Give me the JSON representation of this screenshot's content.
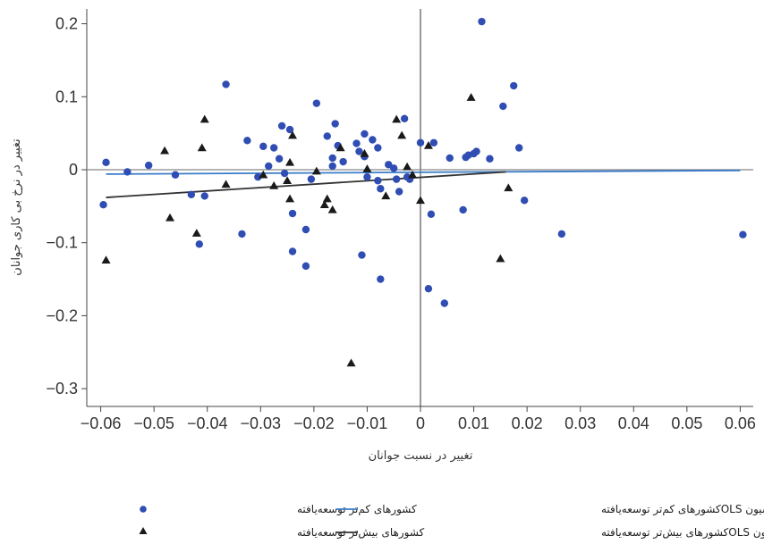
{
  "chart_data": {
    "type": "scatter",
    "xlabel": "تغییر در نسبت جوانان",
    "ylabel": "تغییر در نرخ بی کاری جوانان",
    "xlim": [
      -0.063,
      0.063
    ],
    "ylim": [
      -0.32,
      0.215
    ],
    "xticks": [
      -0.06,
      -0.05,
      -0.04,
      -0.03,
      -0.02,
      -0.01,
      0,
      0.01,
      0.02,
      0.03,
      0.04,
      0.05,
      0.06
    ],
    "xtick_labels": [
      "−0.06",
      "−0.05",
      "−0.04",
      "−0.03",
      "−0.02",
      "−0.01",
      "0",
      "0.01",
      "0.02",
      "0.03",
      "0.04",
      "0.05",
      "0.06"
    ],
    "yticks": [
      0.2,
      0.1,
      0,
      -0.1,
      -0.2,
      -0.3
    ],
    "ytick_labels": [
      "0.2",
      "0.1",
      "0",
      "−0.1",
      "−0.2",
      "−0.3"
    ],
    "grid": false,
    "legend_position": "bottom",
    "colors": {
      "less_developed": "#2f4db3",
      "more_developed": "#1a1a1a",
      "ols_less": "#3a7bc8",
      "ols_more": "#333333"
    },
    "series": [
      {
        "name": "کشورهای کم‌تر توسعه‌یافته",
        "marker": "circle",
        "points": [
          [
            -0.0595,
            -0.048
          ],
          [
            -0.059,
            0.01
          ],
          [
            -0.055,
            -0.003
          ],
          [
            -0.051,
            0.006
          ],
          [
            -0.046,
            -0.007
          ],
          [
            -0.043,
            -0.034
          ],
          [
            -0.0415,
            -0.102
          ],
          [
            -0.0405,
            -0.036
          ],
          [
            -0.0365,
            0.117
          ],
          [
            -0.0335,
            -0.088
          ],
          [
            -0.0325,
            0.04
          ],
          [
            -0.0305,
            -0.01
          ],
          [
            -0.0295,
            0.032
          ],
          [
            -0.0285,
            0.005
          ],
          [
            -0.0275,
            0.03
          ],
          [
            -0.0265,
            0.015
          ],
          [
            -0.026,
            0.06
          ],
          [
            -0.0255,
            -0.005
          ],
          [
            -0.0245,
            0.055
          ],
          [
            -0.024,
            -0.06
          ],
          [
            -0.024,
            -0.112
          ],
          [
            -0.0215,
            -0.082
          ],
          [
            -0.0215,
            -0.132
          ],
          [
            -0.0205,
            -0.013
          ],
          [
            -0.0195,
            0.091
          ],
          [
            -0.0175,
            0.046
          ],
          [
            -0.0165,
            0.016
          ],
          [
            -0.0165,
            0.005
          ],
          [
            -0.016,
            0.063
          ],
          [
            -0.0155,
            0.033
          ],
          [
            -0.0145,
            0.011
          ],
          [
            -0.012,
            0.036
          ],
          [
            -0.0115,
            0.025
          ],
          [
            -0.0105,
            0.018
          ],
          [
            -0.011,
            -0.117
          ],
          [
            -0.0105,
            0.049
          ],
          [
            -0.01,
            -0.01
          ],
          [
            -0.009,
            0.041
          ],
          [
            -0.008,
            0.03
          ],
          [
            -0.008,
            -0.015
          ],
          [
            -0.0075,
            -0.026
          ],
          [
            -0.0075,
            -0.15
          ],
          [
            -0.006,
            0.007
          ],
          [
            -0.005,
            0.002
          ],
          [
            -0.0045,
            -0.013
          ],
          [
            -0.004,
            -0.03
          ],
          [
            -0.003,
            0.07
          ],
          [
            -0.0025,
            -0.01
          ],
          [
            -0.002,
            -0.013
          ],
          [
            0,
            0.037
          ],
          [
            0.0015,
            -0.163
          ],
          [
            0.002,
            -0.061
          ],
          [
            0.0025,
            0.037
          ],
          [
            0.0045,
            -0.183
          ],
          [
            0.0055,
            0.016
          ],
          [
            0.008,
            -0.055
          ],
          [
            0.0085,
            0.017
          ],
          [
            0.009,
            0.02
          ],
          [
            0.01,
            0.022
          ],
          [
            0.0105,
            0.025
          ],
          [
            0.0115,
            0.203
          ],
          [
            0.013,
            0.015
          ],
          [
            0.0155,
            0.087
          ],
          [
            0.0175,
            0.115
          ],
          [
            0.0185,
            0.03
          ],
          [
            0.0195,
            -0.042
          ],
          [
            0.0265,
            -0.088
          ],
          [
            0.0605,
            -0.089
          ]
        ]
      },
      {
        "name": "کشورهای بیش‌تر توسعه‌یافته",
        "marker": "triangle",
        "points": [
          [
            -0.059,
            -0.124
          ],
          [
            -0.048,
            0.026
          ],
          [
            -0.047,
            -0.066
          ],
          [
            -0.041,
            0.03
          ],
          [
            -0.0405,
            0.069
          ],
          [
            -0.042,
            -0.087
          ],
          [
            -0.0365,
            -0.02
          ],
          [
            -0.0295,
            -0.007
          ],
          [
            -0.0275,
            -0.022
          ],
          [
            -0.025,
            -0.015
          ],
          [
            -0.0245,
            -0.04
          ],
          [
            -0.0245,
            0.01
          ],
          [
            -0.024,
            0.047
          ],
          [
            -0.0195,
            -0.002
          ],
          [
            -0.018,
            -0.048
          ],
          [
            -0.0175,
            -0.04
          ],
          [
            -0.0165,
            -0.055
          ],
          [
            -0.015,
            0.03
          ],
          [
            -0.013,
            -0.265
          ],
          [
            -0.0105,
            0.022
          ],
          [
            -0.01,
            0.001
          ],
          [
            -0.0065,
            -0.036
          ],
          [
            -0.0045,
            0.069
          ],
          [
            -0.0035,
            0.047
          ],
          [
            -0.0025,
            0.004
          ],
          [
            -0.0015,
            -0.007
          ],
          [
            0,
            -0.042
          ],
          [
            0.0015,
            0.033
          ],
          [
            0.0095,
            0.099
          ],
          [
            0.015,
            -0.122
          ],
          [
            0.0165,
            -0.025
          ]
        ]
      }
    ],
    "regression_lines": [
      {
        "name": "خط رگرسیون OLSکشورهای کم‌تر توسعه‌یافته",
        "from": [
          -0.059,
          -0.006
        ],
        "to": [
          0.06,
          -0.001
        ]
      },
      {
        "name": "خط رگرسیون OLSکشورهای بیش‌تر توسعه‌یافته",
        "from": [
          -0.059,
          -0.038
        ],
        "to": [
          0.016,
          -0.003
        ]
      }
    ]
  }
}
